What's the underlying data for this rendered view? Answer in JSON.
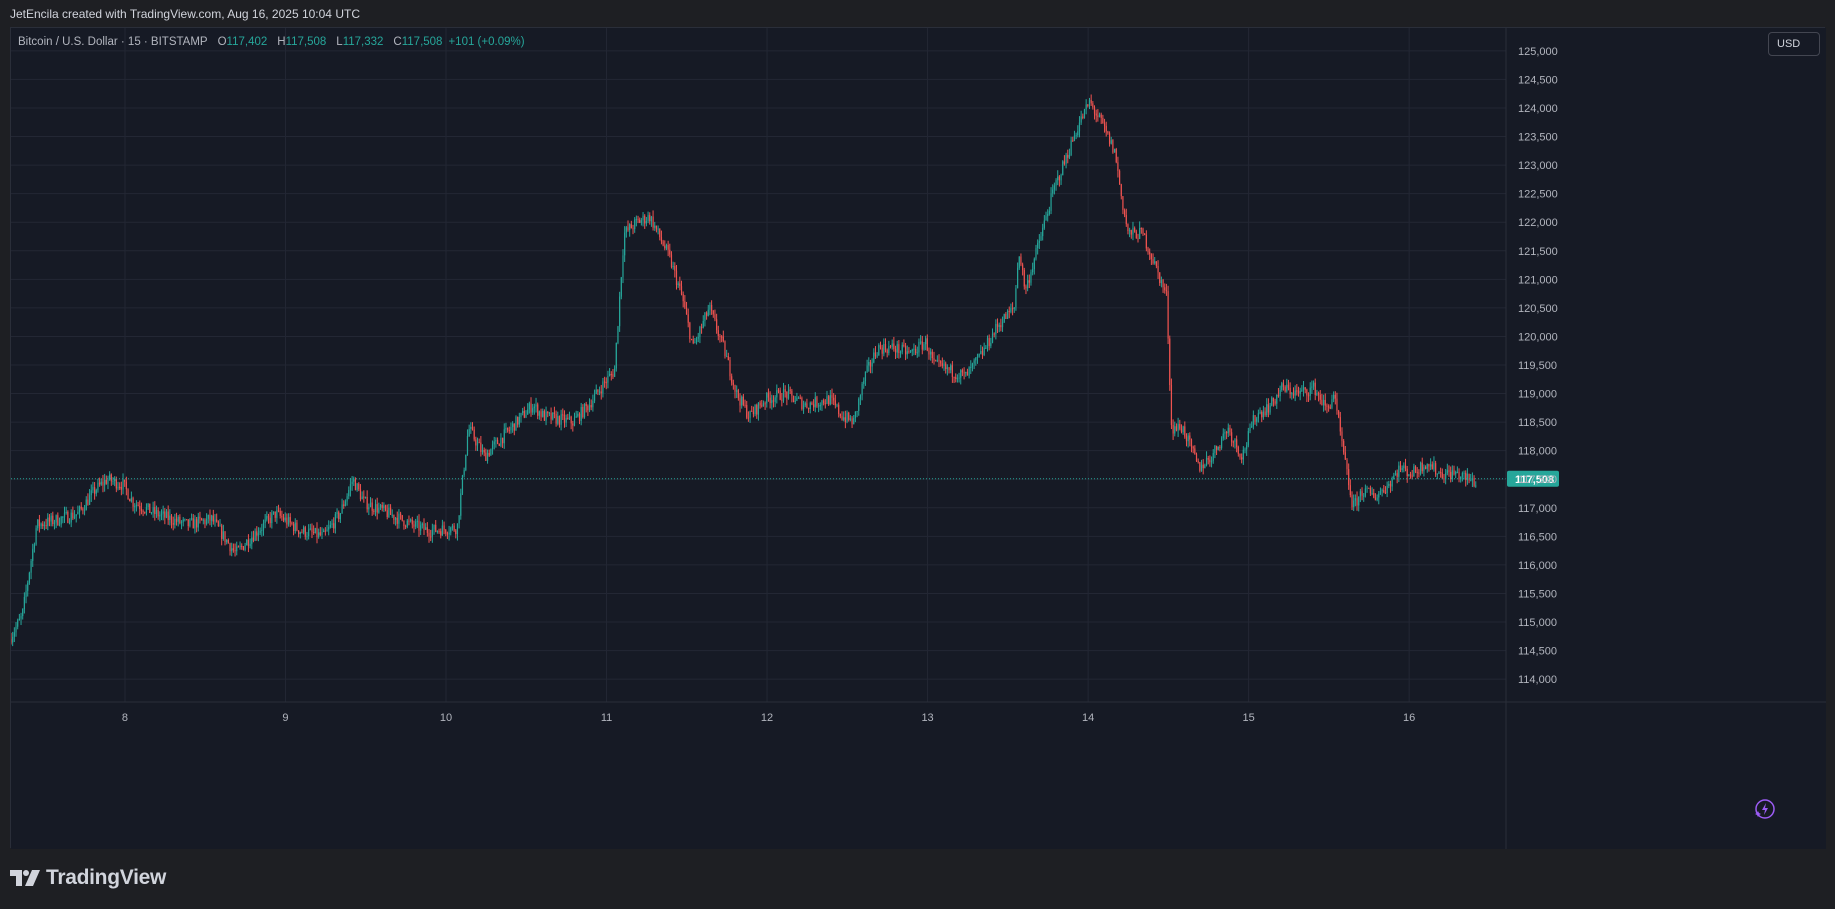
{
  "attribution": "JetEncila created with TradingView.com, Aug 16, 2025 10:04 UTC",
  "legend": {
    "symbol": "Bitcoin / U.S. Dollar · 15 · BITSTAMP",
    "open_label": "O",
    "open": "117,402",
    "high_label": "H",
    "high": "117,508",
    "low_label": "L",
    "low": "117,332",
    "close_label": "C",
    "close": "117,508",
    "change": "+101 (+0.09%)"
  },
  "currency_button": "USD",
  "footer_brand": "TradingView",
  "icons": {
    "logo": "tradingview-logo-icon",
    "flash": "lightning-icon"
  },
  "colors": {
    "background": "#161a25",
    "up": "#26a69a",
    "down": "#ef5350",
    "grid": "#232734",
    "price_tag": "#26a69a"
  },
  "chart_data": {
    "type": "candlestick",
    "symbol": "Bitcoin / U.S. Dollar",
    "interval": "15",
    "exchange": "BITSTAMP",
    "currency": "USD",
    "last_price": 117508,
    "last_price_label": "117,508",
    "ylim": [
      113600,
      125400
    ],
    "y_ticks": [
      114000,
      114500,
      115000,
      115500,
      116000,
      116500,
      117000,
      117500,
      118000,
      118500,
      119000,
      119500,
      120000,
      120500,
      121000,
      121500,
      122000,
      122500,
      123000,
      123500,
      124000,
      124500,
      125000
    ],
    "y_tick_labels": [
      "114,000",
      "114,500",
      "115,000",
      "115,500",
      "116,000",
      "116,500",
      "117,000",
      "117,500",
      "118,000",
      "118,500",
      "119,000",
      "119,500",
      "120,000",
      "120,500",
      "121,000",
      "121,500",
      "122,000",
      "122,500",
      "123,000",
      "123,500",
      "124,000",
      "124,500",
      "125,000"
    ],
    "x_range_days": [
      7.29,
      16.51
    ],
    "x_ticks": [
      8,
      9,
      10,
      11,
      12,
      13,
      14,
      15,
      16
    ],
    "x_tick_labels": [
      "8",
      "9",
      "10",
      "11",
      "12",
      "13",
      "14",
      "15",
      "16"
    ],
    "grid": true,
    "price_path_keypoints": [
      [
        7.29,
        114700
      ],
      [
        7.37,
        115100
      ],
      [
        7.46,
        116700
      ],
      [
        7.6,
        116800
      ],
      [
        7.72,
        116900
      ],
      [
        7.82,
        117300
      ],
      [
        7.9,
        117500
      ],
      [
        8.0,
        117400
      ],
      [
        8.06,
        117100
      ],
      [
        8.2,
        116900
      ],
      [
        8.4,
        116700
      ],
      [
        8.55,
        116800
      ],
      [
        8.65,
        116400
      ],
      [
        8.7,
        116200
      ],
      [
        8.8,
        116500
      ],
      [
        8.95,
        116900
      ],
      [
        9.1,
        116600
      ],
      [
        9.25,
        116500
      ],
      [
        9.35,
        116900
      ],
      [
        9.43,
        117500
      ],
      [
        9.5,
        117100
      ],
      [
        9.65,
        116900
      ],
      [
        9.8,
        116700
      ],
      [
        9.9,
        116600
      ],
      [
        10.08,
        116650
      ],
      [
        10.15,
        118400
      ],
      [
        10.25,
        117900
      ],
      [
        10.35,
        118200
      ],
      [
        10.55,
        118800
      ],
      [
        10.62,
        118600
      ],
      [
        10.8,
        118500
      ],
      [
        10.9,
        118800
      ],
      [
        11.0,
        119200
      ],
      [
        11.06,
        119400
      ],
      [
        11.12,
        121800
      ],
      [
        11.2,
        122000
      ],
      [
        11.28,
        122100
      ],
      [
        11.4,
        121400
      ],
      [
        11.48,
        120700
      ],
      [
        11.55,
        119800
      ],
      [
        11.65,
        120500
      ],
      [
        11.74,
        119800
      ],
      [
        11.82,
        119000
      ],
      [
        11.9,
        118600
      ],
      [
        12.0,
        118900
      ],
      [
        12.12,
        119000
      ],
      [
        12.25,
        118800
      ],
      [
        12.4,
        118900
      ],
      [
        12.48,
        118600
      ],
      [
        12.55,
        118500
      ],
      [
        12.62,
        119300
      ],
      [
        12.7,
        119800
      ],
      [
        12.8,
        119800
      ],
      [
        12.9,
        119700
      ],
      [
        13.0,
        119900
      ],
      [
        13.05,
        119500
      ],
      [
        13.15,
        119400
      ],
      [
        13.25,
        119300
      ],
      [
        13.35,
        119700
      ],
      [
        13.45,
        120200
      ],
      [
        13.55,
        120500
      ],
      [
        13.58,
        121500
      ],
      [
        13.62,
        120800
      ],
      [
        13.72,
        121800
      ],
      [
        13.8,
        122600
      ],
      [
        13.87,
        123100
      ],
      [
        13.95,
        123700
      ],
      [
        14.02,
        124100
      ],
      [
        14.1,
        123700
      ],
      [
        14.18,
        123200
      ],
      [
        14.22,
        122400
      ],
      [
        14.26,
        121800
      ],
      [
        14.35,
        121800
      ],
      [
        14.42,
        121300
      ],
      [
        14.5,
        120700
      ],
      [
        14.53,
        118400
      ],
      [
        14.6,
        118400
      ],
      [
        14.7,
        117700
      ],
      [
        14.78,
        117900
      ],
      [
        14.88,
        118400
      ],
      [
        14.97,
        117900
      ],
      [
        15.05,
        118600
      ],
      [
        15.15,
        118800
      ],
      [
        15.22,
        119100
      ],
      [
        15.32,
        119000
      ],
      [
        15.42,
        119100
      ],
      [
        15.5,
        118700
      ],
      [
        15.54,
        119000
      ],
      [
        15.57,
        118500
      ],
      [
        15.61,
        117800
      ],
      [
        15.66,
        117000
      ],
      [
        15.72,
        117300
      ],
      [
        15.8,
        117200
      ],
      [
        15.88,
        117400
      ],
      [
        15.95,
        117700
      ],
      [
        16.03,
        117600
      ],
      [
        16.12,
        117800
      ],
      [
        16.2,
        117600
      ],
      [
        16.3,
        117600
      ],
      [
        16.42,
        117450
      ]
    ]
  }
}
